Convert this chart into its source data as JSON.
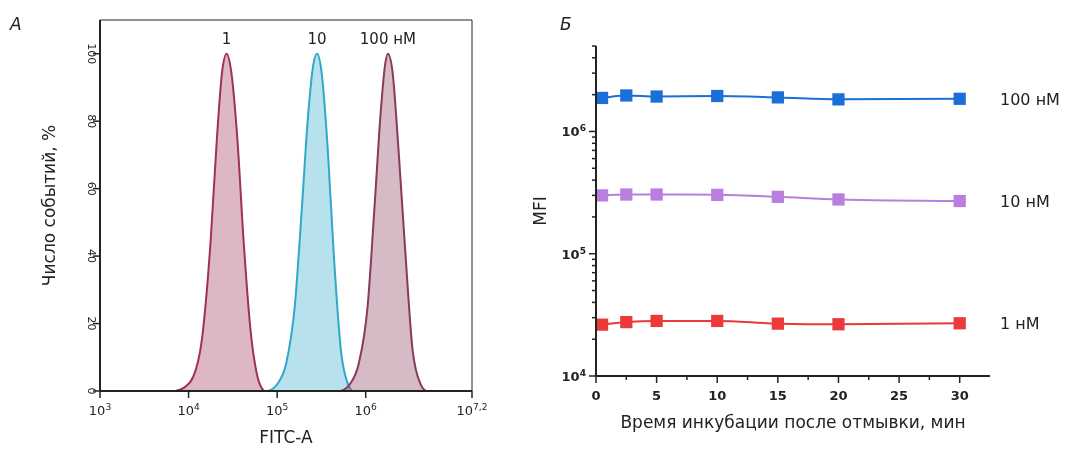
{
  "chart_data": [
    {
      "type": "area",
      "annotations": [
        "А"
      ],
      "xlabel": "FITC-A",
      "ylabel": "Число событий, %",
      "log": "x",
      "xlim": [
        1000,
        15848932
      ],
      "xticks": [
        {
          "value": 1000,
          "label": "10$^{3}$"
        },
        {
          "value": 10000,
          "label": "10$^{4}$"
        },
        {
          "value": 100000,
          "label": "10$^{5}$"
        },
        {
          "value": 1000000,
          "label": "10$^{6}$"
        },
        {
          "value": 15848932,
          "label": "10$^{7,2}$"
        }
      ],
      "ylim": [
        0,
        110
      ],
      "yticks": [
        0,
        20,
        40,
        60,
        80,
        100
      ],
      "grid": false,
      "series": [
        {
          "name": "1",
          "color": "#a0305a",
          "x": [
            7100,
            8900,
            11200,
            14100,
            17800,
            20900,
            24000,
            26900,
            30200,
            35500,
            41700,
            50100,
            60300,
            70800
          ],
          "values": [
            0,
            1,
            4,
            15,
            45,
            75,
            95,
            100,
            95,
            75,
            45,
            18,
            4,
            0
          ]
        },
        {
          "name": "10",
          "color": "#30a8c8",
          "x": [
            79400,
            100000,
            126000,
            158000,
            191000,
            224000,
            257000,
            282000,
            316000,
            372000,
            437000,
            525000,
            631000,
            708000
          ],
          "values": [
            0,
            2,
            8,
            25,
            55,
            82,
            97,
            100,
            95,
            72,
            40,
            12,
            2,
            0
          ]
        },
        {
          "name": "100 нМ",
          "color": "#8a3a5a",
          "x": [
            525000,
            661000,
            832000,
            1050000,
            1260000,
            1480000,
            1660000,
            1780000,
            2000000,
            2340000,
            2820000,
            3390000,
            4170000,
            4790000
          ],
          "values": [
            0,
            2,
            8,
            25,
            55,
            83,
            97,
            100,
            95,
            72,
            40,
            12,
            2,
            0
          ]
        }
      ]
    },
    {
      "type": "line",
      "annotations": [
        "Б"
      ],
      "xlabel": "Время инкубации после отмывки, мин",
      "ylabel": "MFI",
      "log": "y",
      "marker": "square",
      "grid": false,
      "x": [
        0.5,
        2.5,
        5,
        10,
        15,
        20,
        30
      ],
      "xlim": [
        0,
        32.5
      ],
      "xticks": [
        0,
        {
          "value": 2.5,
          "label": null
        },
        5,
        {
          "value": 7.5,
          "label": null
        },
        10,
        {
          "value": 12.5,
          "label": null
        },
        15,
        {
          "value": 17.5,
          "label": null
        },
        20,
        {
          "value": 22.5,
          "label": null
        },
        25,
        {
          "value": 27.5,
          "label": null
        },
        30
      ],
      "ylim": [
        10000,
        5000000
      ],
      "yticks": [
        {
          "value": 10000,
          "label": "10$^{4}$"
        },
        {
          "value": 20000,
          "label": null
        },
        {
          "value": 30000,
          "label": null
        },
        {
          "value": 40000,
          "label": null
        },
        {
          "value": 50000,
          "label": null
        },
        {
          "value": 60000,
          "label": null
        },
        {
          "value": 70000,
          "label": null
        },
        {
          "value": 80000,
          "label": null
        },
        {
          "value": 90000,
          "label": null
        },
        {
          "value": 100000,
          "label": "10$^{5}$"
        },
        {
          "value": 200000,
          "label": null
        },
        {
          "value": 300000,
          "label": null
        },
        {
          "value": 400000,
          "label": null
        },
        {
          "value": 500000,
          "label": null
        },
        {
          "value": 600000,
          "label": null
        },
        {
          "value": 700000,
          "label": null
        },
        {
          "value": 800000,
          "label": null
        },
        {
          "value": 900000,
          "label": null
        },
        {
          "value": 1000000,
          "label": "10$^{6}$"
        },
        {
          "value": 2000000,
          "label": null
        },
        {
          "value": 3000000,
          "label": null
        },
        {
          "value": 4000000,
          "label": null
        },
        {
          "value": 5000000,
          "label": null
        }
      ],
      "series": [
        {
          "name": "100 нМ",
          "color": "#1a6fd8",
          "values": [
            1880000,
            1970000,
            1930000,
            1950000,
            1900000,
            1830000,
            1850000
          ]
        },
        {
          "name": "10 нМ",
          "color": "#b87ee0",
          "values": [
            300000,
            305000,
            305000,
            303000,
            292000,
            278000,
            270000
          ]
        },
        {
          "name": "1 нМ",
          "color": "#ec3a3a",
          "values": [
            26300,
            27600,
            28200,
            28200,
            26800,
            26500,
            27000
          ]
        }
      ]
    }
  ]
}
